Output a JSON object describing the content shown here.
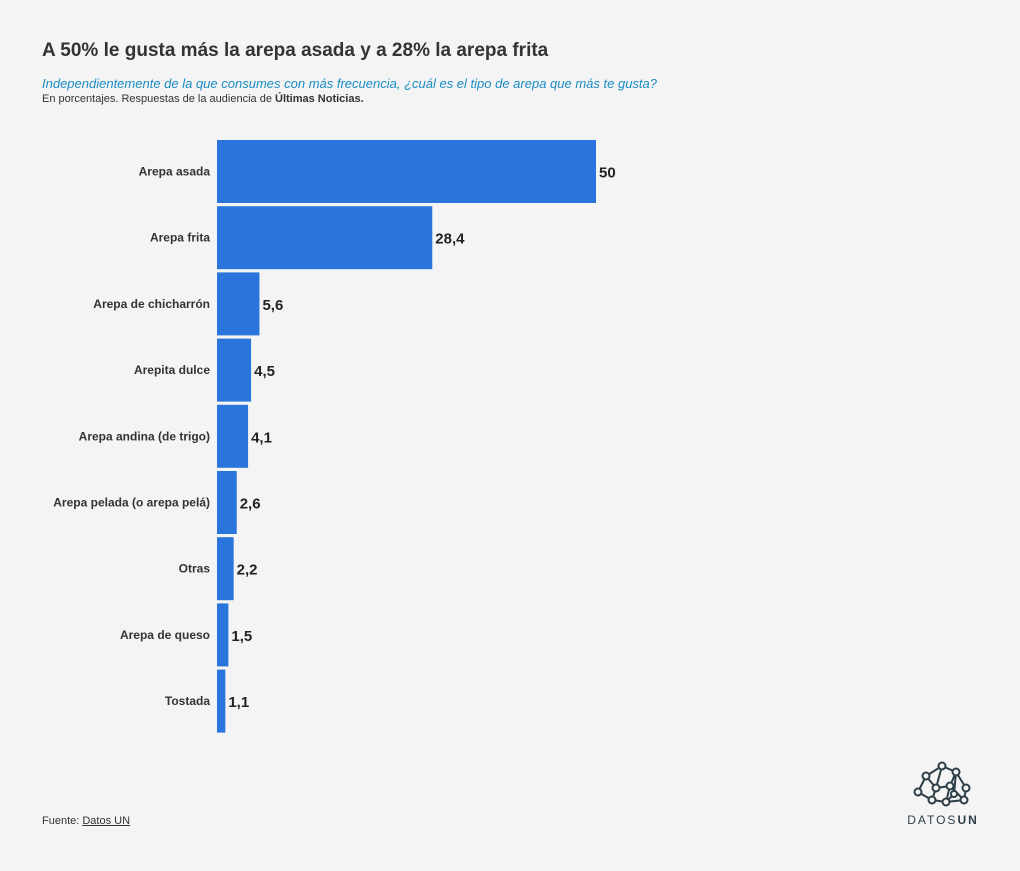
{
  "header": {
    "title": "A 50% le gusta más la arepa asada y a 28% la arepa frita",
    "subtitle": "Independientemente de la que consumes con más frecuencia, ¿cuál es el tipo de arepa que más te gusta?",
    "note_prefix": "En porcentajes. Respuestas de la audiencia de ",
    "note_bold": "Últimas Noticias."
  },
  "footer": {
    "source_prefix": "Fuente: ",
    "source_link": "Datos UN"
  },
  "logo": {
    "text_light": "DATOS",
    "text_bold": "UN",
    "icon": "network-icon",
    "color": "#2d3e48"
  },
  "colors": {
    "bar": "#2a75dc",
    "subtitle": "#1a8cc4"
  },
  "chart_data": {
    "type": "bar",
    "orientation": "horizontal",
    "categories": [
      "Arepa asada",
      "Arepa frita",
      "Arepa de chicharrón",
      "Arepita dulce",
      "Arepa andina (de trigo)",
      "Arepa pelada (o arepa pelá)",
      "Otras",
      "Arepa de queso",
      "Tostada"
    ],
    "values": [
      50,
      28.4,
      5.6,
      4.5,
      4.1,
      2.6,
      2.2,
      1.5,
      1.1
    ],
    "value_labels": [
      "50",
      "28,4",
      "5,6",
      "4,5",
      "4,1",
      "2,6",
      "2,2",
      "1,5",
      "1,1"
    ],
    "xlim": [
      0,
      50
    ],
    "grid": false,
    "legend": "none"
  }
}
